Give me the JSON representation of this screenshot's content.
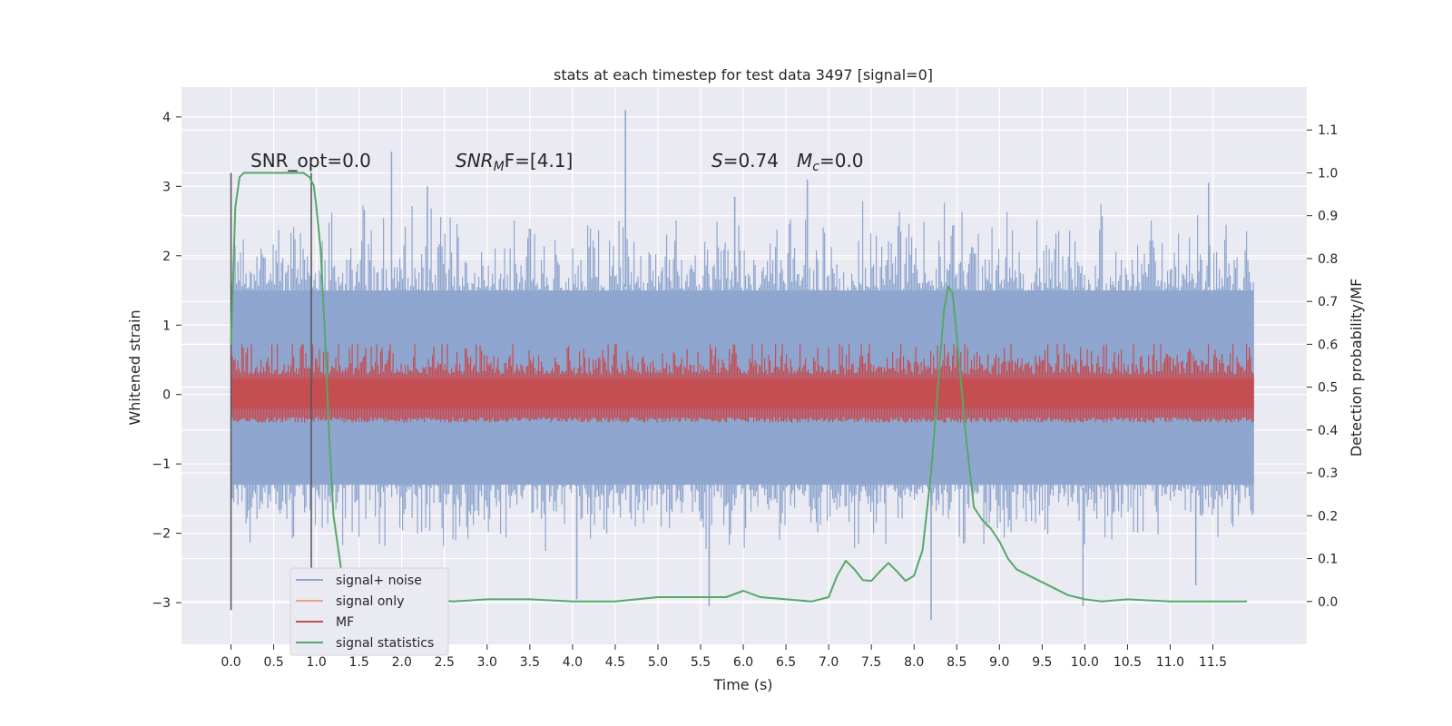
{
  "chart_data": {
    "type": "line",
    "title": "stats at each timestep for test data 3497 [signal=0]",
    "xlabel": "Time (s)",
    "ylabel": "Whitened strain",
    "y2label": "Detection probability/MF",
    "xlim": [
      -0.58,
      12.6
    ],
    "ylim": [
      -3.6,
      4.43
    ],
    "y2lim": [
      -0.1,
      1.2
    ],
    "x_ticks": [
      0.0,
      0.5,
      1.0,
      1.5,
      2.0,
      2.5,
      3.0,
      3.5,
      4.0,
      4.5,
      5.0,
      5.5,
      6.0,
      6.5,
      7.0,
      7.5,
      8.0,
      8.5,
      9.0,
      9.5,
      10.0,
      10.5,
      11.0,
      11.5
    ],
    "x_tick_labels": [
      "0.0",
      "0.5",
      "1.0",
      "1.5",
      "2.0",
      "2.5",
      "3.0",
      "3.5",
      "4.0",
      "4.5",
      "5.0",
      "5.5",
      "6.0",
      "6.5",
      "7.0",
      "7.5",
      "8.0",
      "8.5",
      "9.0",
      "9.5",
      "10.0",
      "10.5",
      "11.0",
      "11.5"
    ],
    "y_ticks": [
      -3,
      -2,
      -1,
      0,
      1,
      2,
      3,
      4
    ],
    "y_tick_labels": [
      "−3",
      "−2",
      "−1",
      "0",
      "1",
      "2",
      "3",
      "4"
    ],
    "y2_ticks": [
      0.0,
      0.1,
      0.2,
      0.3,
      0.4,
      0.5,
      0.6,
      0.7,
      0.8,
      0.9,
      1.0,
      1.1
    ],
    "y2_tick_labels": [
      "0.0",
      "0.1",
      "0.2",
      "0.3",
      "0.4",
      "0.5",
      "0.6",
      "0.7",
      "0.8",
      "0.9",
      "1.0",
      "1.1"
    ],
    "grid": true,
    "legend_position": "lower-left",
    "annotations": {
      "snr_opt": "SNR_opt=0.0",
      "snr_mf_italic": "SNR",
      "snr_mf_sub": "M",
      "snr_mf_tail": "F=[4.1]",
      "s_italic": "S",
      "s_tail": "=0.74",
      "mc_italic": "M",
      "mc_sub": "c",
      "mc_tail": "=0.0"
    },
    "vertical_markers": [
      {
        "x": 0.0,
        "y2_range": [
          -0.02,
          1.0
        ]
      },
      {
        "x": 0.94,
        "y2_range": [
          -0.02,
          1.0
        ]
      }
    ],
    "series": [
      {
        "name": "signal+ noise",
        "color": "#8fa6cf",
        "axis": "left",
        "description": "noise band, typical range about -1.4 to 1.6, peaks to about 4.1 near t=4.6 and down to about -3.2 near t=8.2",
        "x_range": [
          0.0,
          11.98
        ],
        "typical_band": [
          -1.35,
          1.55
        ],
        "spikes": [
          {
            "x": 4.62,
            "y": 4.1
          },
          {
            "x": 1.88,
            "y": 3.5
          },
          {
            "x": 2.3,
            "y": 3.0
          },
          {
            "x": 5.9,
            "y": 2.85
          },
          {
            "x": 6.75,
            "y": 3.1
          },
          {
            "x": 11.45,
            "y": 3.05
          },
          {
            "x": 8.2,
            "y": -3.25
          },
          {
            "x": 5.6,
            "y": -3.05
          },
          {
            "x": 9.98,
            "y": -3.05
          },
          {
            "x": 4.05,
            "y": -2.95
          },
          {
            "x": 11.3,
            "y": -2.75
          }
        ]
      },
      {
        "name": "signal only",
        "color": "#e8a488",
        "axis": "left",
        "values_note": "flat at 0 (hidden under noise)"
      },
      {
        "name": "MF",
        "color": "#c44e52",
        "axis": "right",
        "typical_band": [
          0.42,
          0.55
        ],
        "max": 0.6
      },
      {
        "name": "signal statistics",
        "color": "#55a868",
        "axis": "right",
        "x": [
          0.0,
          0.05,
          0.1,
          0.15,
          0.2,
          0.3,
          0.5,
          0.7,
          0.85,
          0.92,
          0.97,
          1.0,
          1.05,
          1.1,
          1.15,
          1.2,
          1.3,
          1.5,
          1.8,
          2.0,
          2.3,
          2.6,
          3.0,
          3.5,
          4.0,
          4.5,
          5.0,
          5.5,
          5.8,
          6.0,
          6.2,
          6.5,
          6.8,
          7.0,
          7.1,
          7.2,
          7.3,
          7.4,
          7.5,
          7.6,
          7.7,
          7.8,
          7.9,
          8.0,
          8.1,
          8.2,
          8.3,
          8.35,
          8.4,
          8.45,
          8.5,
          8.6,
          8.7,
          8.8,
          8.9,
          9.0,
          9.1,
          9.2,
          9.4,
          9.6,
          9.8,
          10.0,
          10.2,
          10.5,
          11.0,
          11.5,
          11.9
        ],
        "y": [
          0.6,
          0.92,
          0.99,
          1.0,
          1.0,
          1.0,
          1.0,
          1.0,
          1.0,
          0.99,
          0.97,
          0.92,
          0.82,
          0.62,
          0.38,
          0.2,
          0.06,
          0.01,
          0.0,
          0.0,
          0.005,
          0.0,
          0.005,
          0.005,
          0.0,
          0.0,
          0.01,
          0.01,
          0.01,
          0.025,
          0.01,
          0.005,
          0.0,
          0.01,
          0.06,
          0.095,
          0.075,
          0.05,
          0.048,
          0.07,
          0.09,
          0.07,
          0.048,
          0.06,
          0.12,
          0.3,
          0.55,
          0.68,
          0.735,
          0.72,
          0.62,
          0.4,
          0.22,
          0.19,
          0.17,
          0.14,
          0.1,
          0.075,
          0.055,
          0.035,
          0.015,
          0.005,
          0.0,
          0.005,
          0.0,
          0.0,
          0.0
        ]
      }
    ]
  }
}
